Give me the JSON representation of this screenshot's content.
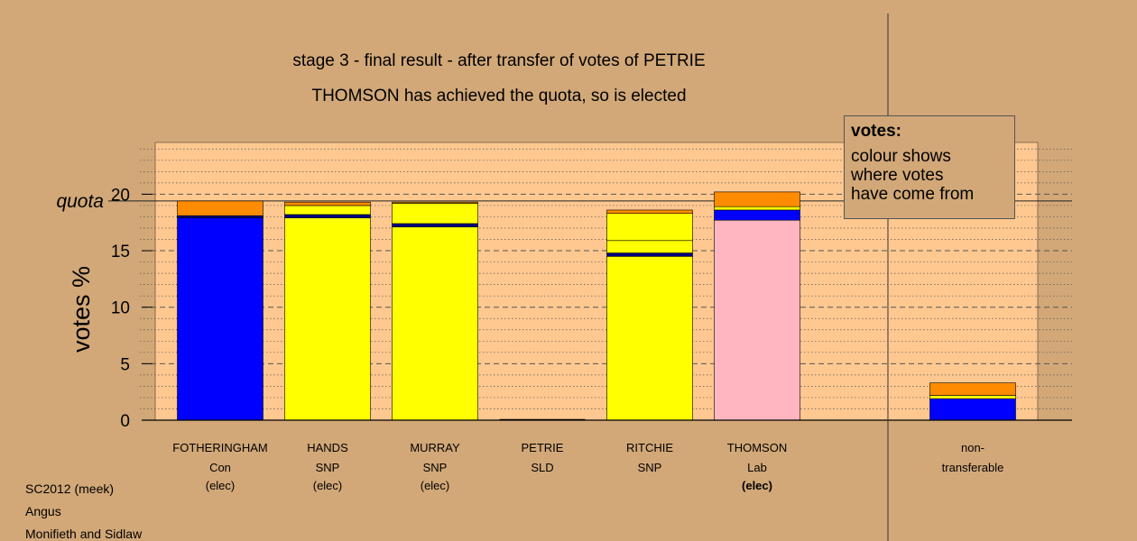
{
  "chart_data": {
    "type": "bar",
    "title": "stage 3 - final result - after transfer of votes of PETRIE",
    "subtitle": "THOMSON has achieved the quota, so is elected",
    "ylabel": "votes %",
    "ylim": [
      0,
      24.5
    ],
    "y_ticks": [
      "0",
      "5",
      "10",
      "15",
      "20"
    ],
    "quota_label": "quota",
    "quota_value": 19.4,
    "candidates": [
      {
        "name": "FOTHERINGHAM",
        "party": "Con",
        "status": "(elec)",
        "status_bold": false,
        "segments": [
          {
            "color": "#0000FF",
            "value": 17.9
          },
          {
            "color": "#000080",
            "value": 0.2
          },
          {
            "color": "#FF8C00",
            "value": 1.3
          }
        ]
      },
      {
        "name": "HANDS",
        "party": "SNP",
        "status": "(elec)",
        "status_bold": false,
        "segments": [
          {
            "color": "#FFFF00",
            "value": 17.9
          },
          {
            "color": "#000080",
            "value": 0.3
          },
          {
            "color": "#FFFF00",
            "value": 0.8
          },
          {
            "color": "#FF8C00",
            "value": 0.3
          }
        ]
      },
      {
        "name": "MURRAY",
        "party": "SNP",
        "status": "(elec)",
        "status_bold": false,
        "segments": [
          {
            "color": "#FFFF00",
            "value": 17.1
          },
          {
            "color": "#000080",
            "value": 0.3
          },
          {
            "color": "#FFFF00",
            "value": 1.8
          },
          {
            "color": "#FF8C00",
            "value": 0.1
          }
        ]
      },
      {
        "name": "PETRIE",
        "party": "SLD",
        "status": "",
        "status_bold": false,
        "segments": []
      },
      {
        "name": "RITCHIE",
        "party": "SNP",
        "status": "",
        "status_bold": false,
        "segments": [
          {
            "color": "#FFFF00",
            "value": 14.5
          },
          {
            "color": "#000080",
            "value": 0.3
          },
          {
            "color": "#FFFF00",
            "value": 1.1
          },
          {
            "color": "#FFFF00",
            "value": 2.4
          },
          {
            "color": "#FF8C00",
            "value": 0.3
          }
        ]
      },
      {
        "name": "THOMSON",
        "party": "Lab",
        "status": "(elec)",
        "status_bold": true,
        "segments": [
          {
            "color": "#FFB6C1",
            "value": 17.7
          },
          {
            "color": "#0000FF",
            "value": 0.9
          },
          {
            "color": "#FFFF00",
            "value": 0.3
          },
          {
            "color": "#FF8C00",
            "value": 1.3
          }
        ]
      },
      {
        "name": "non-",
        "party": "transferable",
        "status": "",
        "status_bold": false,
        "segments": [
          {
            "color": "#0000FF",
            "value": 1.9
          },
          {
            "color": "#FFFF00",
            "value": 0.3
          },
          {
            "color": "#FF8C00",
            "value": 1.1
          }
        ]
      }
    ]
  },
  "legend": {
    "title": "votes:",
    "lines": [
      "colour shows",
      "where votes",
      "have come from"
    ]
  },
  "footer": {
    "line1": "SC2012 (meek)",
    "line2": "Angus",
    "line3": "Monifieth and Sidlaw"
  }
}
